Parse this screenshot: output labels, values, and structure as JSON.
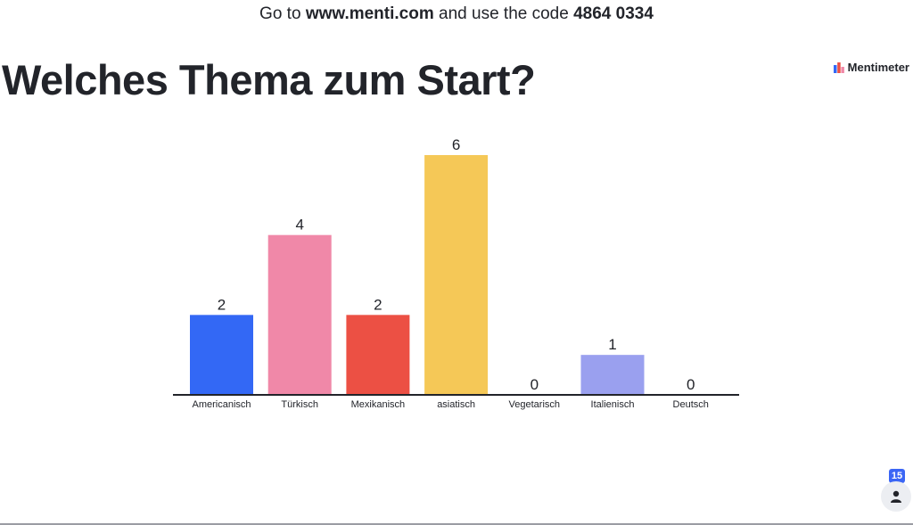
{
  "header": {
    "prefix": "Go to",
    "url": "www.menti.com",
    "middle": "and use the code",
    "code": "4864 0334"
  },
  "question": "Welches Thema zum Start?",
  "brand": {
    "name": "Mentimeter",
    "icon": "mentimeter-logo-icon"
  },
  "participants": {
    "count": "15",
    "icon": "person-icon"
  },
  "colors": {
    "text": "#22242a",
    "bars": [
      "#3368f5",
      "#f088a8",
      "#ec5044",
      "#f5c857",
      "#9aa0ef",
      "#9aa0ef",
      "#9aa0ef"
    ]
  },
  "chart_data": {
    "type": "bar",
    "categories": [
      "Americanisch",
      "Türkisch",
      "Mexikanisch",
      "asiatisch",
      "Vegetarisch",
      "Italienisch",
      "Deutsch"
    ],
    "values": [
      2,
      4,
      2,
      6,
      0,
      1,
      0
    ],
    "title": "",
    "xlabel": "",
    "ylabel": "",
    "ylim": [
      0,
      6
    ],
    "grid": false,
    "legend": "none",
    "data_labels": true
  }
}
